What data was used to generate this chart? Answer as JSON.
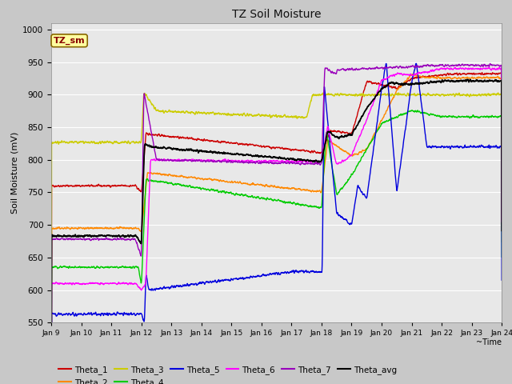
{
  "title": "TZ Soil Moisture",
  "xlabel": "~Time",
  "ylabel": "Soil Moisture (mV)",
  "ylim": [
    550,
    1010
  ],
  "xlim": [
    0,
    15
  ],
  "xtick_labels": [
    "Jan 9",
    "Jan 10",
    "Jan 11",
    "Jan 12",
    "Jan 13",
    "Jan 14",
    "Jan 15",
    "Jan 16",
    "Jan 17",
    "Jan 18",
    "Jan 19",
    "Jan 20",
    "Jan 21",
    "Jan 22",
    "Jan 23",
    "Jan 24"
  ],
  "fig_bg": "#c8c8c8",
  "plot_bg": "#e8e8e8",
  "legend_label": "TZ_sm",
  "series_colors": {
    "Theta_1": "#cc0000",
    "Theta_2": "#ff8800",
    "Theta_3": "#cccc00",
    "Theta_4": "#00cc00",
    "Theta_5": "#0000dd",
    "Theta_6": "#ff00ff",
    "Theta_7": "#9900bb",
    "Theta_avg": "#000000"
  },
  "yticks": [
    550,
    600,
    650,
    700,
    750,
    800,
    850,
    900,
    950,
    1000
  ]
}
